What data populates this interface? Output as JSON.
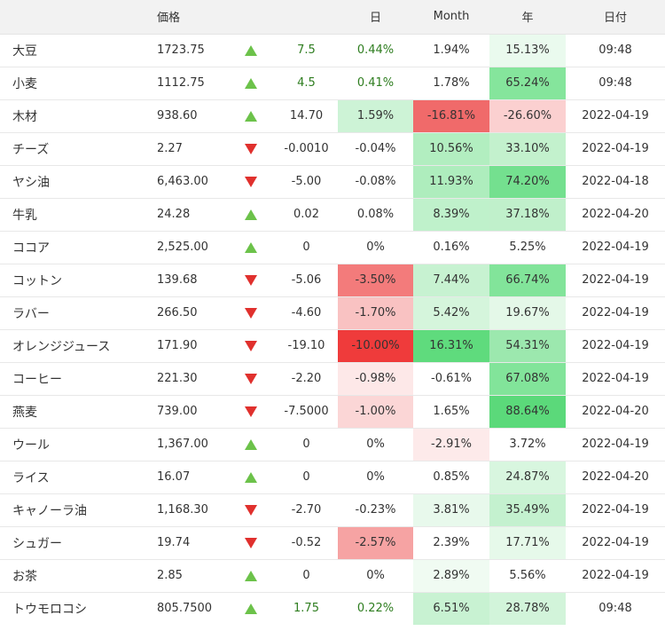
{
  "headers": {
    "name": "",
    "price": "価格",
    "arrow": "",
    "change": "",
    "day": "日",
    "month": "Month",
    "year": "年",
    "date": "日付"
  },
  "colors": {
    "arrow_up": "#6cc24a",
    "arrow_down": "#e0302d",
    "positive_text": "#2e7d1f",
    "header_bg": "#f2f2f2"
  },
  "rows": [
    {
      "name": "大豆",
      "price": "1723.75",
      "dir": "up",
      "change": "7.5",
      "day": "0.44%",
      "month": "1.94%",
      "year": "15.13%",
      "date": "09:48",
      "green": true,
      "bg_day": "",
      "bg_month": "",
      "bg_year": "#eafaee"
    },
    {
      "name": "小麦",
      "price": "1112.75",
      "dir": "up",
      "change": "4.5",
      "day": "0.41%",
      "month": "1.78%",
      "year": "65.24%",
      "date": "09:48",
      "green": true,
      "bg_day": "",
      "bg_month": "",
      "bg_year": "#85e59c"
    },
    {
      "name": "木材",
      "price": "938.60",
      "dir": "up",
      "change": "14.70",
      "day": "1.59%",
      "month": "-16.81%",
      "year": "-26.60%",
      "date": "2022-04-19",
      "green": false,
      "bg_day": "#cdf3d6",
      "bg_month": "#f06a6a",
      "bg_year": "#fbd0d0"
    },
    {
      "name": "チーズ",
      "price": "2.27",
      "dir": "down",
      "change": "-0.0010",
      "day": "-0.04%",
      "month": "10.56%",
      "year": "33.10%",
      "date": "2022-04-19",
      "green": false,
      "bg_day": "",
      "bg_month": "#b2eec0",
      "bg_year": "#c3f1cd"
    },
    {
      "name": "ヤシ油",
      "price": "6,463.00",
      "dir": "down",
      "change": "-5.00",
      "day": "-0.08%",
      "month": "11.93%",
      "year": "74.20%",
      "date": "2022-04-18",
      "green": false,
      "bg_day": "",
      "bg_month": "#aeedbd",
      "bg_year": "#74e08f"
    },
    {
      "name": "牛乳",
      "price": "24.28",
      "dir": "up",
      "change": "0.02",
      "day": "0.08%",
      "month": "8.39%",
      "year": "37.18%",
      "date": "2022-04-20",
      "green": false,
      "bg_day": "",
      "bg_month": "#bff1cb",
      "bg_year": "#c0f0cb"
    },
    {
      "name": "ココア",
      "price": "2,525.00",
      "dir": "up",
      "change": "0",
      "day": "0%",
      "month": "0.16%",
      "year": "5.25%",
      "date": "2022-04-19",
      "green": false,
      "bg_day": "",
      "bg_month": "",
      "bg_year": ""
    },
    {
      "name": "コットン",
      "price": "139.68",
      "dir": "down",
      "change": "-5.06",
      "day": "-3.50%",
      "month": "7.44%",
      "year": "66.74%",
      "date": "2022-04-19",
      "green": false,
      "bg_day": "#f37b7b",
      "bg_month": "#c7f2d1",
      "bg_year": "#82e49a"
    },
    {
      "name": "ラバー",
      "price": "266.50",
      "dir": "down",
      "change": "-4.60",
      "day": "-1.70%",
      "month": "5.42%",
      "year": "19.67%",
      "date": "2022-04-19",
      "green": false,
      "bg_day": "#f9c2c2",
      "bg_month": "#d5f5dc",
      "bg_year": "#e4f8e8"
    },
    {
      "name": "オレンジジュース",
      "price": "171.90",
      "dir": "down",
      "change": "-19.10",
      "day": "-10.00%",
      "month": "16.31%",
      "year": "54.31%",
      "date": "2022-04-19",
      "green": false,
      "bg_day": "#ef3b3b",
      "bg_month": "#5fdb7d",
      "bg_year": "#9ce8ae"
    },
    {
      "name": "コーヒー",
      "price": "221.30",
      "dir": "down",
      "change": "-2.20",
      "day": "-0.98%",
      "month": "-0.61%",
      "year": "67.08%",
      "date": "2022-04-19",
      "green": false,
      "bg_day": "#fde8e8",
      "bg_month": "",
      "bg_year": "#82e49a"
    },
    {
      "name": "燕麦",
      "price": "739.00",
      "dir": "down",
      "change": "-7.5000",
      "day": "-1.00%",
      "month": "1.65%",
      "year": "88.64%",
      "date": "2022-04-20",
      "green": false,
      "bg_day": "#fbd6d6",
      "bg_month": "",
      "bg_year": "#5bd97a"
    },
    {
      "name": "ウール",
      "price": "1,367.00",
      "dir": "up",
      "change": "0",
      "day": "0%",
      "month": "-2.91%",
      "year": "3.72%",
      "date": "2022-04-19",
      "green": false,
      "bg_day": "",
      "bg_month": "#fdeaea",
      "bg_year": ""
    },
    {
      "name": "ライス",
      "price": "16.07",
      "dir": "up",
      "change": "0",
      "day": "0%",
      "month": "0.85%",
      "year": "24.87%",
      "date": "2022-04-20",
      "green": false,
      "bg_day": "",
      "bg_month": "",
      "bg_year": "#d8f6df"
    },
    {
      "name": "キャノーラ油",
      "price": "1,168.30",
      "dir": "down",
      "change": "-2.70",
      "day": "-0.23%",
      "month": "3.81%",
      "year": "35.49%",
      "date": "2022-04-19",
      "green": false,
      "bg_day": "",
      "bg_month": "#e8f9ec",
      "bg_year": "#c4f1cf"
    },
    {
      "name": "シュガー",
      "price": "19.74",
      "dir": "down",
      "change": "-0.52",
      "day": "-2.57%",
      "month": "2.39%",
      "year": "17.71%",
      "date": "2022-04-19",
      "green": false,
      "bg_day": "#f6a3a3",
      "bg_month": "",
      "bg_year": "#e6f9ea"
    },
    {
      "name": "お茶",
      "price": "2.85",
      "dir": "up",
      "change": "0",
      "day": "0%",
      "month": "2.89%",
      "year": "5.56%",
      "date": "2022-04-19",
      "green": false,
      "bg_day": "",
      "bg_month": "#f0fbf2",
      "bg_year": ""
    },
    {
      "name": "トウモロコシ",
      "price": "805.7500",
      "dir": "up",
      "change": "1.75",
      "day": "0.22%",
      "month": "6.51%",
      "year": "28.78%",
      "date": "09:48",
      "green": true,
      "bg_day": "",
      "bg_month": "#c8f2d2",
      "bg_year": "#d2f4da"
    }
  ]
}
